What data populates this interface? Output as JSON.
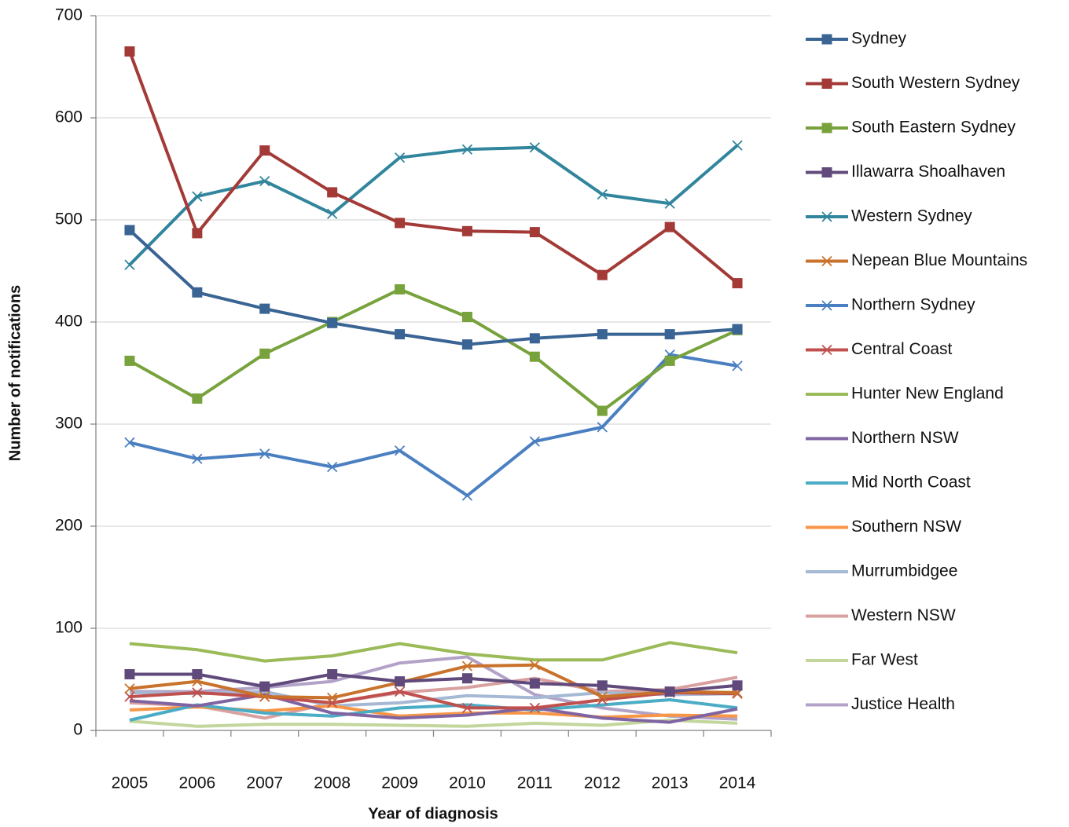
{
  "chart_data": {
    "type": "line",
    "xlabel": "Year of diagnosis",
    "ylabel": "Number of notifications",
    "categories": [
      "2005",
      "2006",
      "2007",
      "2008",
      "2009",
      "2010",
      "2011",
      "2012",
      "2013",
      "2014"
    ],
    "ylim": [
      0,
      700
    ],
    "yticks": [
      0,
      100,
      200,
      300,
      400,
      500,
      600,
      700
    ],
    "grid": true,
    "legend": "right",
    "series": [
      {
        "name": "Sydney",
        "color": "#3a6494",
        "marker": "square",
        "values": [
          490,
          429,
          413,
          399,
          388,
          378,
          384,
          388,
          388,
          393
        ]
      },
      {
        "name": "South Western Sydney",
        "color": "#a33a37",
        "marker": "square",
        "values": [
          665,
          487,
          568,
          527,
          497,
          489,
          488,
          446,
          493,
          438
        ]
      },
      {
        "name": "South Eastern Sydney",
        "color": "#77a23c",
        "marker": "square",
        "values": [
          362,
          325,
          369,
          400,
          432,
          405,
          366,
          313,
          362,
          392
        ]
      },
      {
        "name": "Illawarra Shoalhaven",
        "color": "#604a7b",
        "marker": "square",
        "values": [
          55,
          55,
          43,
          55,
          48,
          51,
          46,
          44,
          38,
          44
        ]
      },
      {
        "name": "Western Sydney",
        "color": "#31859c",
        "marker": "x",
        "values": [
          456,
          523,
          538,
          506,
          561,
          569,
          571,
          525,
          516,
          573
        ]
      },
      {
        "name": "Nepean Blue Mountains",
        "color": "#c8722c",
        "marker": "x",
        "values": [
          41,
          48,
          33,
          32,
          47,
          63,
          64,
          33,
          38,
          37
        ]
      },
      {
        "name": "Northern Sydney",
        "color": "#4a7fc1",
        "marker": "x",
        "values": [
          282,
          266,
          271,
          258,
          274,
          230,
          283,
          297,
          368,
          357
        ]
      },
      {
        "name": "Central Coast",
        "color": "#c0504d",
        "marker": "x",
        "values": [
          33,
          37,
          33,
          27,
          38,
          22,
          22,
          30,
          37,
          36
        ]
      },
      {
        "name": "Hunter New England",
        "color": "#9bbb59",
        "values": [
          85,
          79,
          68,
          73,
          85,
          75,
          69,
          69,
          86,
          76
        ]
      },
      {
        "name": "Northern NSW",
        "color": "#8064a2",
        "values": [
          29,
          24,
          35,
          17,
          12,
          15,
          22,
          12,
          8,
          21
        ]
      },
      {
        "name": "Mid North Coast",
        "color": "#4bacc6",
        "values": [
          10,
          25,
          17,
          14,
          22,
          25,
          20,
          25,
          30,
          22
        ]
      },
      {
        "name": "Southern NSW",
        "color": "#f79646",
        "values": [
          20,
          23,
          19,
          24,
          14,
          17,
          17,
          13,
          15,
          14
        ]
      },
      {
        "name": "Murrumbidgee",
        "color": "#a5b8d4",
        "values": [
          37,
          36,
          38,
          24,
          27,
          34,
          32,
          37,
          35,
          36
        ]
      },
      {
        "name": "Western NSW",
        "color": "#d9a0a0",
        "values": [
          27,
          24,
          12,
          27,
          37,
          42,
          51,
          38,
          40,
          52
        ]
      },
      {
        "name": "Far West",
        "color": "#c3d69b",
        "values": [
          9,
          4,
          6,
          6,
          5,
          4,
          7,
          5,
          10,
          7
        ]
      },
      {
        "name": "Justice Health",
        "color": "#b3a2c7",
        "values": [
          38,
          38,
          42,
          48,
          66,
          72,
          35,
          22,
          14,
          11
        ]
      }
    ]
  }
}
